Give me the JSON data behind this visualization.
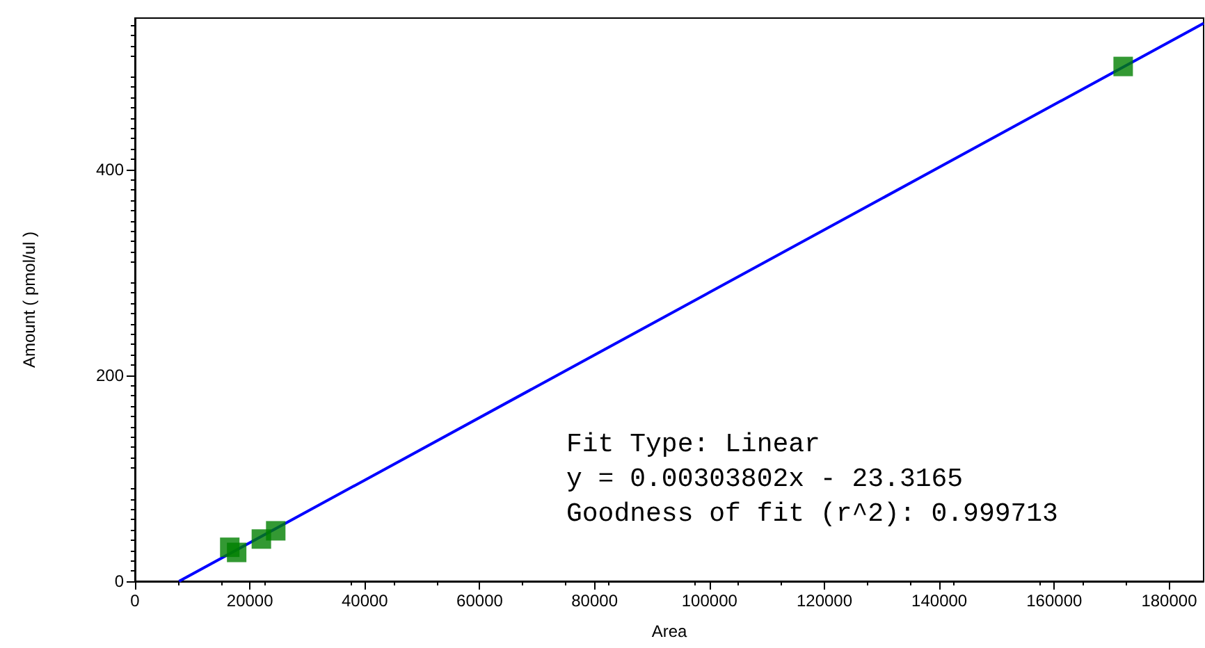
{
  "chart_data": {
    "type": "scatter",
    "xlabel": "Area",
    "ylabel": "Amount ( pmol/ul )",
    "xlim": [
      0,
      186000
    ],
    "xticks": [
      0,
      20000,
      40000,
      60000,
      80000,
      100000,
      120000,
      140000,
      160000,
      180000
    ],
    "ylim": [
      0,
      547
    ],
    "yticks": [
      0,
      200,
      400
    ],
    "grid": false,
    "marker": "square",
    "series": [
      {
        "color": "#008000",
        "x": [
          16500,
          17700,
          22000,
          24500,
          172000
        ],
        "values": [
          33,
          28,
          41,
          49,
          500
        ]
      },
      {
        "type": "line",
        "color": "#0000ff",
        "x": [
          7675,
          186000
        ],
        "values": [
          0,
          542
        ],
        "marker": "none",
        "line_style": "solid"
      }
    ],
    "annotations": [
      "Fit Type: Linear",
      "y = 0.00303802x - 23.3165",
      "Goodness of fit (r^2): 0.999713"
    ]
  }
}
